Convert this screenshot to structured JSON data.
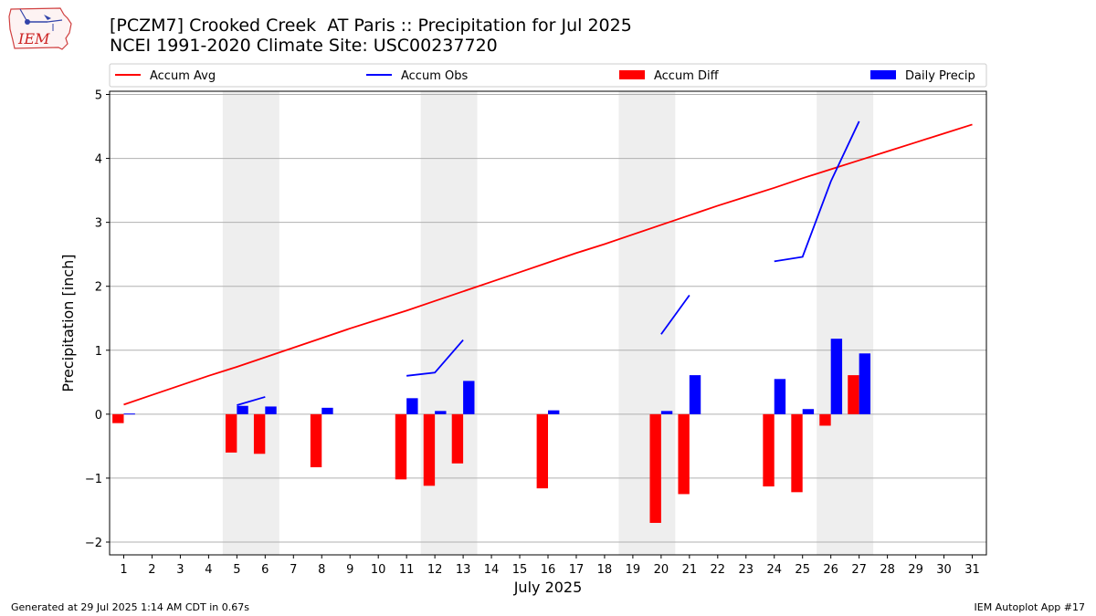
{
  "header": {
    "logo_text": "IEM",
    "title_line1": "[PCZM7] Crooked Creek  AT Paris :: Precipitation for Jul 2025",
    "title_line2": "NCEI 1991-2020 Climate Site: USC00237720"
  },
  "footer": {
    "generated": "Generated at 29 Jul 2025 1:14 AM CDT in 0.67s",
    "app": "IEM Autoplot App #17"
  },
  "colors": {
    "accum_avg": "#ff0000",
    "accum_obs": "#0000ff",
    "accum_diff": "#ff0000",
    "daily_precip": "#0000ff",
    "weekend_shade": "#eeeeee",
    "grid": "#b0b0b0"
  },
  "chart_data": {
    "type": "bar",
    "xlabel": "July 2025",
    "ylabel": "Precipitation [inch]",
    "ylim": [
      -2.2,
      5.05
    ],
    "xlim": [
      0.5,
      31.5
    ],
    "yticks": [
      -2,
      -1,
      0,
      1,
      2,
      3,
      4,
      5
    ],
    "ytick_labels": [
      "−2",
      "−1",
      "0",
      "1",
      "2",
      "3",
      "4",
      "5"
    ],
    "days": [
      1,
      2,
      3,
      4,
      5,
      6,
      7,
      8,
      9,
      10,
      11,
      12,
      13,
      14,
      15,
      16,
      17,
      18,
      19,
      20,
      21,
      22,
      23,
      24,
      25,
      26,
      27,
      28,
      29,
      30,
      31
    ],
    "legend": [
      "Accum Avg",
      "Accum Obs",
      "Accum Diff",
      "Daily Precip"
    ],
    "legend_location": "top, above plot",
    "grid_y": true,
    "shaded_days": [
      [
        4.5,
        6.5
      ],
      [
        11.5,
        13.5
      ],
      [
        18.5,
        20.5
      ],
      [
        25.5,
        27.5
      ]
    ],
    "accum_avg": [
      0.15,
      0.3,
      0.45,
      0.6,
      0.74,
      0.89,
      1.04,
      1.19,
      1.34,
      1.48,
      1.62,
      1.77,
      1.92,
      2.07,
      2.22,
      2.37,
      2.52,
      2.66,
      2.81,
      2.96,
      3.11,
      3.26,
      3.4,
      3.54,
      3.69,
      3.83,
      3.97,
      4.11,
      4.25,
      4.39,
      4.53
    ],
    "accum_obs_segments": [
      {
        "x": [
          5,
          6
        ],
        "y": [
          0.14,
          0.27
        ]
      },
      {
        "x": [
          11,
          12,
          13
        ],
        "y": [
          0.6,
          0.65,
          1.16
        ]
      },
      {
        "x": [
          20,
          21
        ],
        "y": [
          1.25,
          1.86
        ]
      },
      {
        "x": [
          24,
          25,
          26,
          27
        ],
        "y": [
          2.39,
          2.46,
          3.64,
          4.58
        ]
      }
    ],
    "accum_diff": [
      {
        "day": 1,
        "value": -0.14
      },
      {
        "day": 5,
        "value": -0.6
      },
      {
        "day": 6,
        "value": -0.62
      },
      {
        "day": 8,
        "value": -0.83
      },
      {
        "day": 11,
        "value": -1.02
      },
      {
        "day": 12,
        "value": -1.12
      },
      {
        "day": 13,
        "value": -0.77
      },
      {
        "day": 16,
        "value": -1.16
      },
      {
        "day": 20,
        "value": -1.7
      },
      {
        "day": 21,
        "value": -1.25
      },
      {
        "day": 24,
        "value": -1.13
      },
      {
        "day": 25,
        "value": -1.22
      },
      {
        "day": 26,
        "value": -0.18
      },
      {
        "day": 27,
        "value": 0.61
      }
    ],
    "daily_precip": [
      {
        "day": 1,
        "value": 0.01
      },
      {
        "day": 5,
        "value": 0.13
      },
      {
        "day": 6,
        "value": 0.12
      },
      {
        "day": 8,
        "value": 0.1
      },
      {
        "day": 11,
        "value": 0.25
      },
      {
        "day": 12,
        "value": 0.05
      },
      {
        "day": 13,
        "value": 0.52
      },
      {
        "day": 16,
        "value": 0.06
      },
      {
        "day": 20,
        "value": 0.05
      },
      {
        "day": 21,
        "value": 0.61
      },
      {
        "day": 24,
        "value": 0.55
      },
      {
        "day": 25,
        "value": 0.08
      },
      {
        "day": 26,
        "value": 1.18
      },
      {
        "day": 27,
        "value": 0.95
      }
    ]
  }
}
